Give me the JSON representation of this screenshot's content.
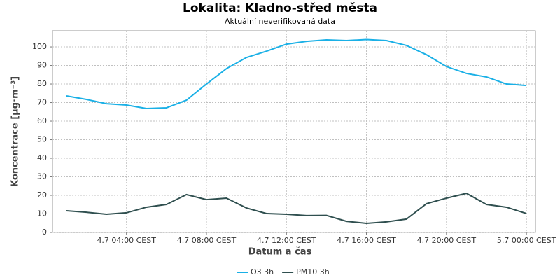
{
  "chart_data": {
    "type": "line",
    "title": "Lokalita: Kladno-střed města",
    "subtitle": "Aktuální neverifikovaná data",
    "x_label": "Datum a čas",
    "y_label": "Koncentrace [µg·m⁻³]",
    "x": [
      1,
      2,
      3,
      4,
      5,
      6,
      7,
      8,
      9,
      10,
      11,
      12,
      13,
      14,
      15,
      16,
      17,
      18,
      19,
      20,
      21,
      22,
      23,
      24
    ],
    "series": [
      {
        "name": "O3 3h",
        "color": "#1ab0e6",
        "values": [
          73.6,
          71.7,
          69.4,
          68.7,
          66.8,
          67.2,
          71.3,
          80,
          88.3,
          94.3,
          97.7,
          101.5,
          103,
          103.8,
          103.4,
          104,
          103.4,
          100.8,
          95.8,
          89.4,
          85.7,
          83.8,
          80,
          79.2
        ]
      },
      {
        "name": "PM10 3h",
        "color": "#2f4f4f",
        "values": [
          11.7,
          10.9,
          9.8,
          10.6,
          13.6,
          15.1,
          20.4,
          17.7,
          18.5,
          13.2,
          10.2,
          9.8,
          9.1,
          9.2,
          6,
          4.9,
          5.7,
          7.2,
          15.5,
          18.5,
          21.1,
          15.1,
          13.6,
          10.2
        ]
      }
    ],
    "xlim": [
      0.3,
      24.45
    ],
    "xticks": [
      {
        "value": 4,
        "label": "4.7 04:00 CEST"
      },
      {
        "value": 8,
        "label": "4.7 08:00 CEST"
      },
      {
        "value": 12,
        "label": "4.7 12:00 CEST"
      },
      {
        "value": 16,
        "label": "4.7 16:00 CEST"
      },
      {
        "value": 20,
        "label": "4.7 20:00 CEST"
      },
      {
        "value": 24,
        "label": "5.7 00:00 CEST"
      }
    ],
    "ylim": [
      0,
      108.7
    ],
    "yticks": [
      0,
      10,
      20,
      30,
      40,
      50,
      60,
      70,
      80,
      90,
      100
    ],
    "grid": true,
    "legend": "bottom"
  }
}
